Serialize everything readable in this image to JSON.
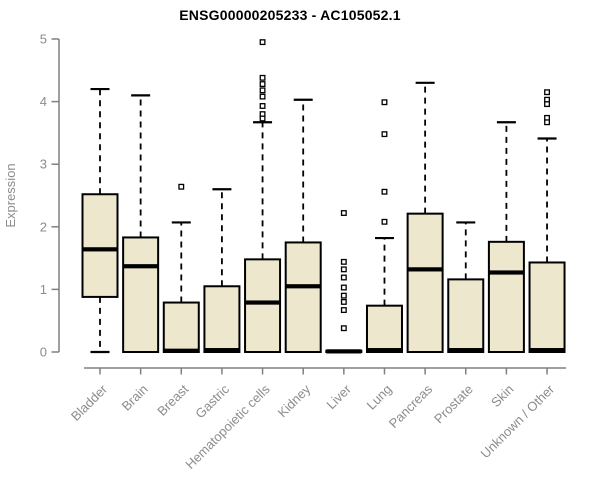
{
  "window": {
    "background": "#ffffff"
  },
  "chart_data": {
    "type": "boxplot",
    "title": "ENSG00000205233 - AC105052.1",
    "ylabel": "Expression",
    "xlabel": "",
    "ylim": [
      0,
      5
    ],
    "yticks": [
      0,
      1,
      2,
      3,
      4,
      5
    ],
    "grid": false,
    "legend": "none",
    "categories": [
      "Bladder",
      "Brain",
      "Breast",
      "Gastric",
      "Hematopoietic cells",
      "Kidney",
      "Liver",
      "Lung",
      "Pancreas",
      "Prostate",
      "Skin",
      "Unknown / Other"
    ],
    "boxes": [
      {
        "category": "Bladder",
        "whisker_low": 0,
        "q1": 0.88,
        "median": 1.64,
        "q3": 2.52,
        "whisker_high": 4.2,
        "outliers": []
      },
      {
        "category": "Brain",
        "whisker_low": 0,
        "q1": 0.0,
        "median": 1.37,
        "q3": 1.83,
        "whisker_high": 4.1,
        "outliers": []
      },
      {
        "category": "Breast",
        "whisker_low": 0,
        "q1": 0.0,
        "median": 0.02,
        "q3": 0.79,
        "whisker_high": 2.07,
        "outliers": [
          2.64
        ]
      },
      {
        "category": "Gastric",
        "whisker_low": 0,
        "q1": 0.0,
        "median": 0.03,
        "q3": 1.05,
        "whisker_high": 2.6,
        "outliers": []
      },
      {
        "category": "Hematopoietic cells",
        "whisker_low": 0,
        "q1": 0.0,
        "median": 0.79,
        "q3": 1.48,
        "whisker_high": 3.67,
        "outliers": [
          4.95,
          4.38,
          4.28,
          4.18,
          4.08,
          3.93,
          3.8,
          3.73
        ]
      },
      {
        "category": "Kidney",
        "whisker_low": 0,
        "q1": 0.0,
        "median": 1.05,
        "q3": 1.75,
        "whisker_high": 4.03,
        "outliers": []
      },
      {
        "category": "Liver",
        "whisker_low": 0,
        "q1": 0.0,
        "median": 0.01,
        "q3": 0.02,
        "whisker_high": 0.02,
        "outliers": [
          2.22,
          1.44,
          1.32,
          1.19,
          1.03,
          0.9,
          0.8,
          0.67,
          0.38
        ]
      },
      {
        "category": "Lung",
        "whisker_low": 0,
        "q1": 0.0,
        "median": 0.03,
        "q3": 0.74,
        "whisker_high": 1.82,
        "outliers": [
          3.99,
          3.48,
          2.56,
          2.08
        ]
      },
      {
        "category": "Pancreas",
        "whisker_low": 0,
        "q1": 0.0,
        "median": 1.32,
        "q3": 2.21,
        "whisker_high": 4.3,
        "outliers": []
      },
      {
        "category": "Prostate",
        "whisker_low": 0,
        "q1": 0.0,
        "median": 0.03,
        "q3": 1.16,
        "whisker_high": 2.07,
        "outliers": []
      },
      {
        "category": "Skin",
        "whisker_low": 0,
        "q1": 0.0,
        "median": 1.27,
        "q3": 1.76,
        "whisker_high": 3.67,
        "outliers": []
      },
      {
        "category": "Unknown / Other",
        "whisker_low": 0,
        "q1": 0.0,
        "median": 0.03,
        "q3": 1.43,
        "whisker_high": 3.41,
        "outliers": [
          4.15,
          4.03,
          3.96,
          3.74,
          3.67
        ]
      }
    ],
    "colors": {
      "box_fill": "#ece7cd",
      "box_border": "#000000",
      "median": "#000000",
      "whisker": "#000000",
      "outlier_stroke": "#000000",
      "outlier_fill": "#ffffff",
      "axis": "#808080",
      "tick_label": "#8c8c8c",
      "title": "#000000",
      "background": "#ffffff"
    }
  }
}
